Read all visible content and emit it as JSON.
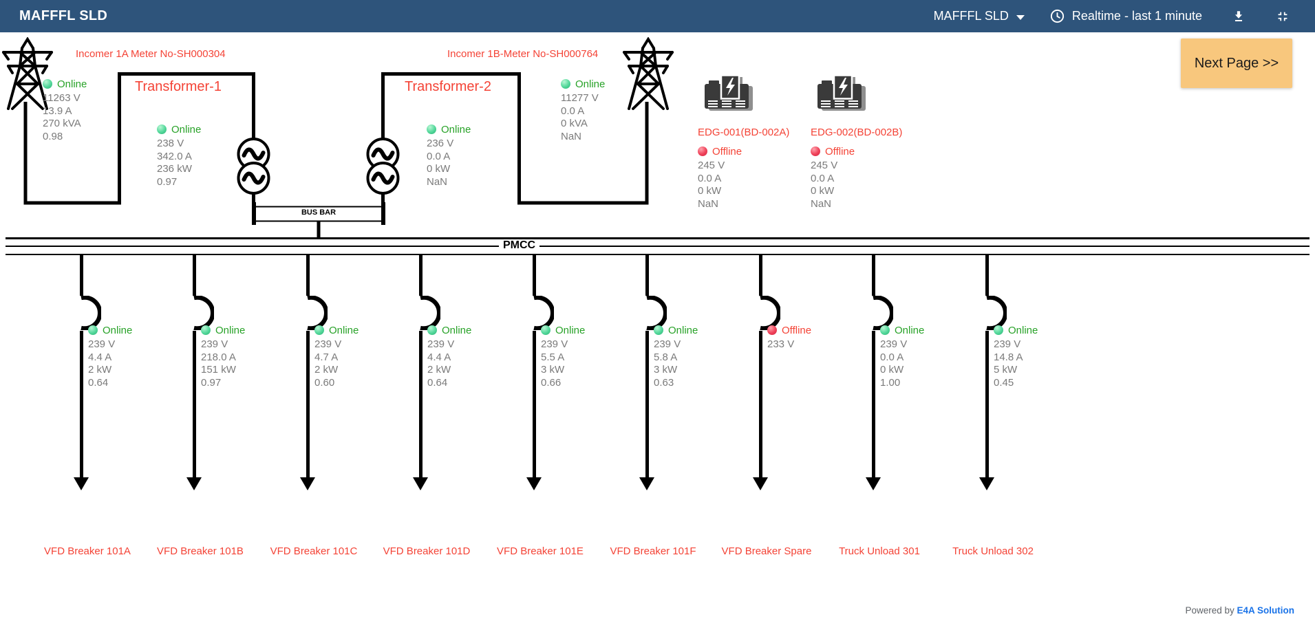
{
  "header": {
    "title": "MAFFFL SLD",
    "site_selector": "MAFFFL SLD",
    "realtime": "Realtime - last 1 minute",
    "icons": [
      "chevron-down",
      "clock",
      "download",
      "compress"
    ]
  },
  "next_page_label": "Next Page >>",
  "bus": {
    "busbar": "BUS BAR",
    "pmcc": "PMCC"
  },
  "incomers": [
    {
      "label": "Incomer 1A Meter No-SH000304",
      "status": "Online",
      "values": [
        "11263 V",
        "13.9 A",
        "270 kVA",
        "0.98"
      ]
    },
    {
      "label": "Incomer 1B-Meter No-SH000764",
      "status": "Online",
      "values": [
        "11277 V",
        "0.0 A",
        "0 kVA",
        "NaN"
      ]
    }
  ],
  "transformers": [
    {
      "label": "Transformer-1",
      "status": "Online",
      "values": [
        "238 V",
        "342.0 A",
        "236 kW",
        "0.97"
      ]
    },
    {
      "label": "Transformer-2",
      "status": "Online",
      "values": [
        "236 V",
        "0.0 A",
        "0 kW",
        "NaN"
      ]
    }
  ],
  "generators": [
    {
      "label": "EDG-001(BD-002A)",
      "status": "Offline",
      "values": [
        "245 V",
        "0.0 A",
        "0 kW",
        "NaN"
      ]
    },
    {
      "label": "EDG-002(BD-002B)",
      "status": "Offline",
      "values": [
        "245 V",
        "0.0 A",
        "0 kW",
        "NaN"
      ]
    }
  ],
  "feeders": [
    {
      "label": "VFD Breaker 101A",
      "status": "Online",
      "values": [
        "239 V",
        "4.4 A",
        "2 kW",
        "0.64"
      ]
    },
    {
      "label": "VFD Breaker 101B",
      "status": "Online",
      "values": [
        "239 V",
        "218.0 A",
        "151 kW",
        "0.97"
      ]
    },
    {
      "label": "VFD Breaker 101C",
      "status": "Online",
      "values": [
        "239 V",
        "4.7 A",
        "2 kW",
        "0.60"
      ]
    },
    {
      "label": "VFD Breaker 101D",
      "status": "Online",
      "values": [
        "239 V",
        "4.4 A",
        "2 kW",
        "0.64"
      ]
    },
    {
      "label": "VFD Breaker 101E",
      "status": "Online",
      "values": [
        "239 V",
        "5.5 A",
        "3 kW",
        "0.66"
      ]
    },
    {
      "label": "VFD Breaker 101F",
      "status": "Online",
      "values": [
        "239 V",
        "5.8 A",
        "3 kW",
        "0.63"
      ]
    },
    {
      "label": "VFD Breaker Spare",
      "status": "Offline",
      "values": [
        "233 V"
      ]
    },
    {
      "label": "Truck Unload 301",
      "status": "Online",
      "values": [
        "239 V",
        "0.0 A",
        "0 kW",
        "1.00"
      ]
    },
    {
      "label": "Truck Unload 302",
      "status": "Online",
      "values": [
        "239 V",
        "14.8 A",
        "5 kW",
        "0.45"
      ]
    }
  ],
  "footer": {
    "powered_by": "Powered by",
    "brand": "E4A Solution"
  },
  "colors": {
    "header_bg": "#2e547b",
    "next_page_bg": "#f8c77d",
    "label_red": "#f44336",
    "online_green": "#28a228",
    "value_gray": "#7a7a7a",
    "brand_blue": "#1a73e8"
  }
}
